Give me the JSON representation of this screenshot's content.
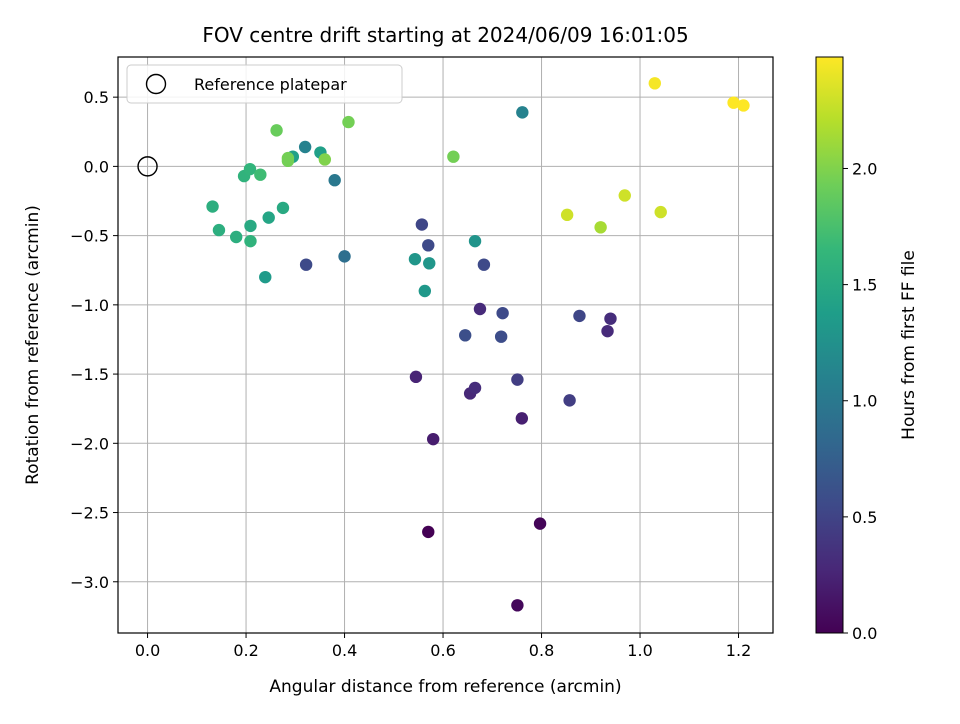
{
  "chart_data": {
    "type": "scatter",
    "title": "FOV centre drift starting at 2024/06/09 16:01:05",
    "xlabel": "Angular distance from reference (arcmin)",
    "ylabel": "Rotation from reference (arcmin)",
    "xlim": [
      -0.06,
      1.27
    ],
    "ylim": [
      -3.37,
      0.79
    ],
    "xticks": [
      0.0,
      0.2,
      0.4,
      0.6,
      0.8,
      1.0,
      1.2
    ],
    "xtick_labels": [
      "0.0",
      "0.2",
      "0.4",
      "0.6",
      "0.8",
      "1.0",
      "1.2"
    ],
    "yticks": [
      0.5,
      0.0,
      -0.5,
      -1.0,
      -1.5,
      -2.0,
      -2.5,
      -3.0
    ],
    "ytick_labels": [
      "0.5",
      "0.0",
      "−0.5",
      "−1.0",
      "−1.5",
      "−2.0",
      "−2.5",
      "−3.0"
    ],
    "grid": true,
    "legend": {
      "placement": "top-left",
      "entries": [
        "Reference platepar"
      ]
    },
    "reference_point": {
      "x": 0.0,
      "y": 0.0
    },
    "colorbar": {
      "label": "Hours from first FF file",
      "colormap": "viridis",
      "range": [
        0.0,
        2.48
      ],
      "ticks": [
        0.0,
        0.5,
        1.0,
        1.5,
        2.0
      ],
      "tick_labels": [
        "0.0",
        "0.5",
        "1.0",
        "1.5",
        "2.0"
      ]
    },
    "points": [
      {
        "x": 0.57,
        "y": -2.64,
        "c": 0.0
      },
      {
        "x": 0.797,
        "y": -2.58,
        "c": 0.03
      },
      {
        "x": 0.751,
        "y": -3.17,
        "c": 0.05
      },
      {
        "x": 0.58,
        "y": -1.97,
        "c": 0.2
      },
      {
        "x": 0.76,
        "y": -1.82,
        "c": 0.22
      },
      {
        "x": 0.545,
        "y": -1.52,
        "c": 0.25
      },
      {
        "x": 0.655,
        "y": -1.64,
        "c": 0.28
      },
      {
        "x": 0.665,
        "y": -1.6,
        "c": 0.32
      },
      {
        "x": 0.675,
        "y": -1.03,
        "c": 0.3
      },
      {
        "x": 0.934,
        "y": -1.19,
        "c": 0.3
      },
      {
        "x": 0.94,
        "y": -1.1,
        "c": 0.32
      },
      {
        "x": 0.751,
        "y": -1.54,
        "c": 0.45
      },
      {
        "x": 0.857,
        "y": -1.69,
        "c": 0.45
      },
      {
        "x": 0.877,
        "y": -1.08,
        "c": 0.52
      },
      {
        "x": 0.721,
        "y": -1.06,
        "c": 0.55
      },
      {
        "x": 0.718,
        "y": -1.23,
        "c": 0.58
      },
      {
        "x": 0.645,
        "y": -1.22,
        "c": 0.6
      },
      {
        "x": 0.683,
        "y": -0.71,
        "c": 0.55
      },
      {
        "x": 0.557,
        "y": -0.42,
        "c": 0.52
      },
      {
        "x": 0.57,
        "y": -0.57,
        "c": 0.55
      },
      {
        "x": 0.322,
        "y": -0.71,
        "c": 0.55
      },
      {
        "x": 0.4,
        "y": -0.65,
        "c": 0.9
      },
      {
        "x": 0.38,
        "y": -0.1,
        "c": 1.0
      },
      {
        "x": 0.761,
        "y": 0.39,
        "c": 1.1
      },
      {
        "x": 0.32,
        "y": 0.14,
        "c": 1.1
      },
      {
        "x": 0.665,
        "y": -0.54,
        "c": 1.28
      },
      {
        "x": 0.543,
        "y": -0.67,
        "c": 1.3
      },
      {
        "x": 0.572,
        "y": -0.7,
        "c": 1.3
      },
      {
        "x": 0.563,
        "y": -0.9,
        "c": 1.32
      },
      {
        "x": 0.239,
        "y": -0.8,
        "c": 1.35
      },
      {
        "x": 0.351,
        "y": 0.1,
        "c": 1.4
      },
      {
        "x": 0.295,
        "y": 0.07,
        "c": 1.4
      },
      {
        "x": 0.246,
        "y": -0.37,
        "c": 1.45
      },
      {
        "x": 0.209,
        "y": -0.43,
        "c": 1.5
      },
      {
        "x": 0.275,
        "y": -0.3,
        "c": 1.5
      },
      {
        "x": 0.132,
        "y": -0.29,
        "c": 1.55
      },
      {
        "x": 0.145,
        "y": -0.46,
        "c": 1.55
      },
      {
        "x": 0.18,
        "y": -0.51,
        "c": 1.55
      },
      {
        "x": 0.209,
        "y": -0.54,
        "c": 1.6
      },
      {
        "x": 0.196,
        "y": -0.07,
        "c": 1.6
      },
      {
        "x": 0.208,
        "y": -0.02,
        "c": 1.62
      },
      {
        "x": 0.229,
        "y": -0.06,
        "c": 1.7
      },
      {
        "x": 0.262,
        "y": 0.26,
        "c": 1.9
      },
      {
        "x": 0.285,
        "y": 0.04,
        "c": 1.95
      },
      {
        "x": 0.285,
        "y": 0.06,
        "c": 1.95
      },
      {
        "x": 0.36,
        "y": 0.05,
        "c": 2.0
      },
      {
        "x": 0.408,
        "y": 0.32,
        "c": 1.95
      },
      {
        "x": 0.621,
        "y": 0.07,
        "c": 1.95
      },
      {
        "x": 0.92,
        "y": -0.44,
        "c": 2.15
      },
      {
        "x": 0.852,
        "y": -0.35,
        "c": 2.3
      },
      {
        "x": 0.969,
        "y": -0.21,
        "c": 2.3
      },
      {
        "x": 1.042,
        "y": -0.33,
        "c": 2.3
      },
      {
        "x": 1.03,
        "y": 0.6,
        "c": 2.45
      },
      {
        "x": 1.19,
        "y": 0.46,
        "c": 2.48
      },
      {
        "x": 1.21,
        "y": 0.44,
        "c": 2.48
      }
    ]
  }
}
